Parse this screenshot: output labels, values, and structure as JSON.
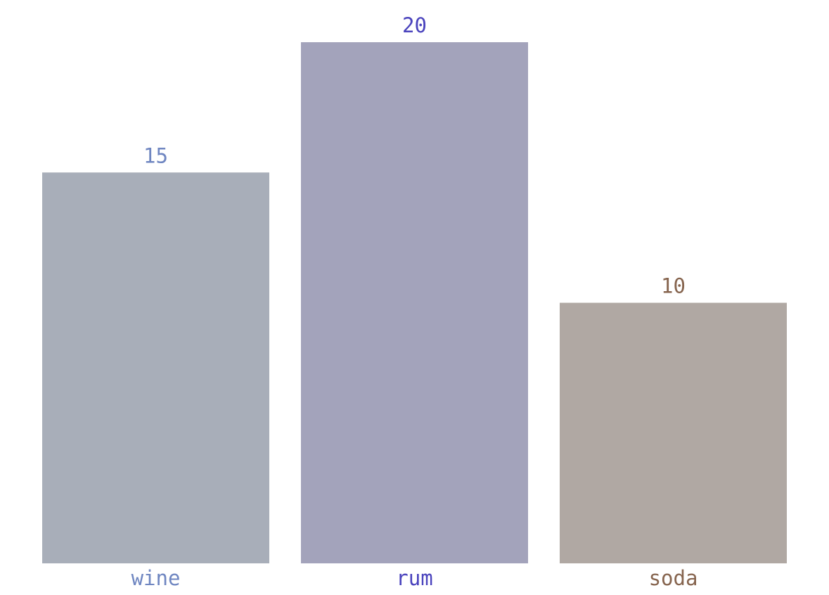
{
  "chart_data": {
    "type": "bar",
    "title": "",
    "xlabel": "",
    "ylabel": "",
    "categories": [
      "wine",
      "rum",
      "soda"
    ],
    "values": [
      15,
      20,
      10
    ],
    "value_labels": [
      "15",
      "20",
      "10"
    ],
    "ylim": [
      0,
      20
    ],
    "grid": false,
    "legend": "none",
    "colors": {
      "bars": [
        "#a8aeb9",
        "#a3a3bb",
        "#b0a8a3"
      ],
      "labels": [
        "#6f86c1",
        "#4a43bd",
        "#86644e"
      ]
    }
  }
}
